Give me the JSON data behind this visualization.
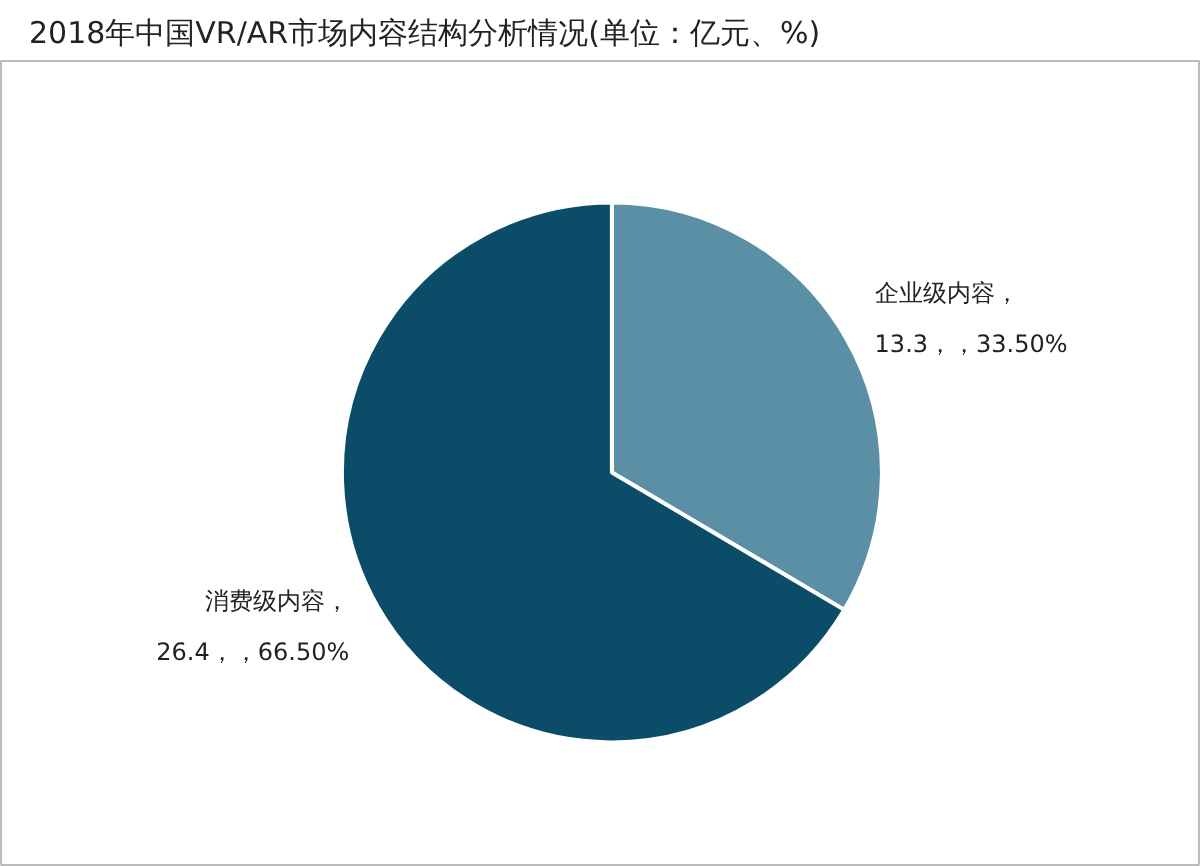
{
  "chart_data": {
    "type": "pie",
    "title": "2018年中国VR/AR市场内容结构分析情况(单位：亿元、%)",
    "categories": [
      "企业级内容",
      "消费级内容"
    ],
    "values": [
      13.3,
      26.4
    ],
    "colors": [
      "#5b8fa6",
      "#0b4d69"
    ],
    "value_labels": [
      "，\n13.3，，33.50%",
      "，\n26.4，，66.50%"
    ]
  }
}
